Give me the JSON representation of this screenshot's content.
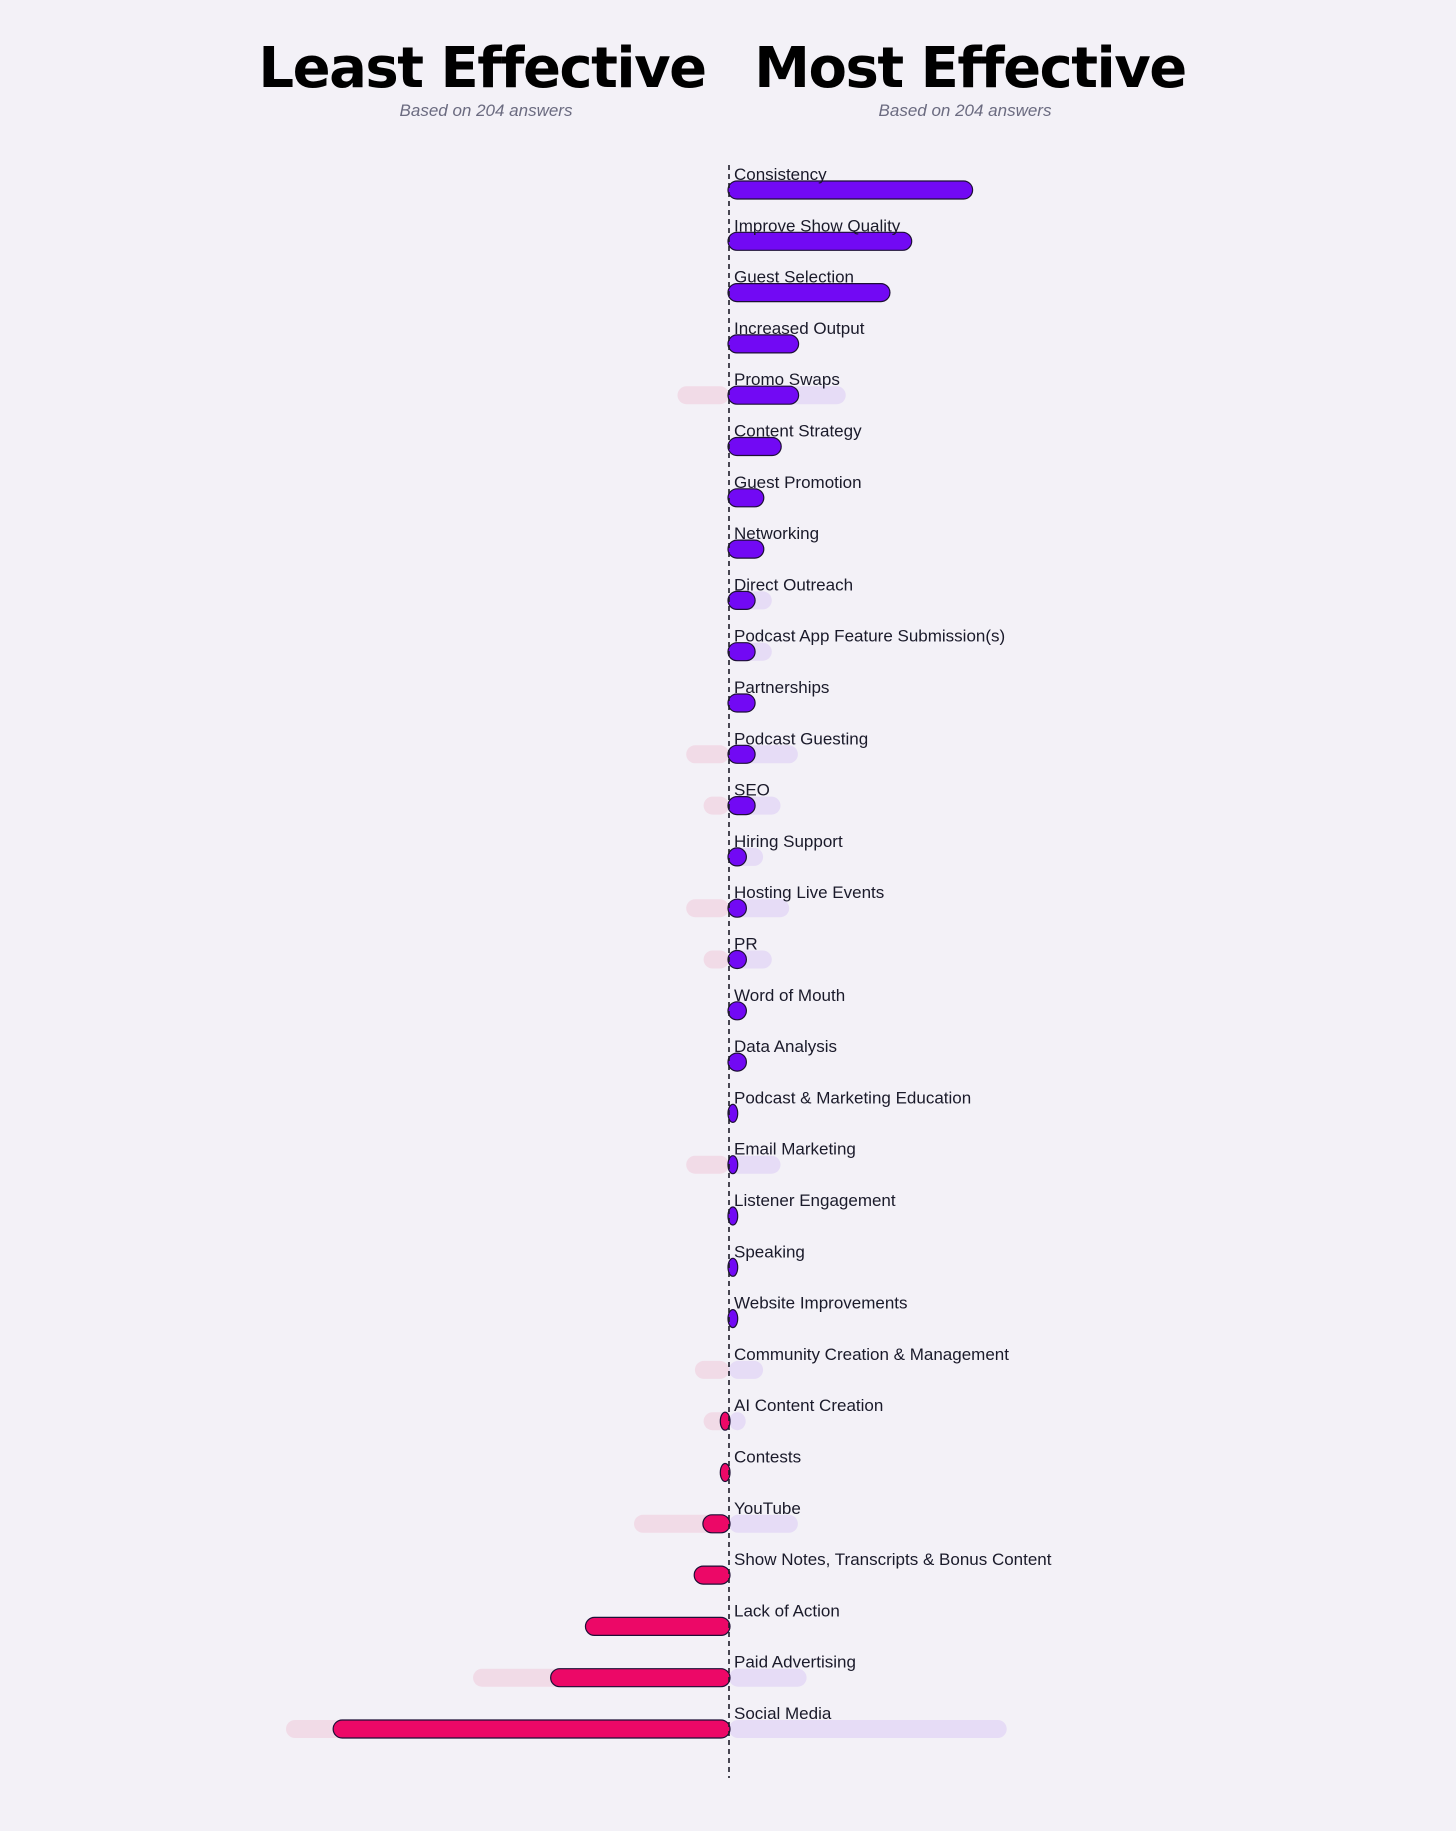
{
  "header": {
    "left": {
      "title": "Least Effective",
      "subtitle": "Based on 204 answers"
    },
    "right": {
      "title": "Most Effective",
      "subtitle": "Based on 204 answers"
    }
  },
  "colors": {
    "most": "#7209f4",
    "least": "#ec0867",
    "most_faint": "#e6dcf6",
    "least_faint": "#f1dbe7",
    "stroke": "#1d0f36",
    "background": "#f3f1f7"
  },
  "chart_data": {
    "type": "bar",
    "orientation": "horizontal-diverging",
    "xlabel": "",
    "ylabel": "",
    "grid": false,
    "legend": "none",
    "units": "relative length (Social Media, Least Effective = 100)",
    "categories": [
      "Consistency",
      "Improve Show Quality",
      "Guest Selection",
      "Increased Output",
      "Promo Swaps",
      "Content Strategy",
      "Guest Promotion",
      "Networking",
      "Direct Outreach",
      "Podcast App Feature Submission(s)",
      "Partnerships",
      "Podcast Guesting",
      "SEO",
      "Hiring Support",
      "Hosting Live Events",
      "PR",
      "Word of Mouth",
      "Data Analysis",
      "Podcast & Marketing Education",
      "Email Marketing",
      "Listener Engagement",
      "Speaking",
      "Website Improvements",
      "Community Creation & Management",
      "AI Content Creation",
      "Contests",
      "YouTube",
      "Show Notes, Transcripts & Bonus Content",
      "Lack of Action",
      "Paid Advertising",
      "Social Media"
    ],
    "series": [
      {
        "name": "Most Effective",
        "values": [
          56,
          42,
          37,
          16,
          16,
          12,
          8,
          8,
          6,
          6,
          6,
          6,
          6,
          4,
          4,
          4,
          4,
          4,
          2,
          2,
          2,
          2,
          2,
          0,
          0,
          0,
          0,
          0,
          0,
          0,
          0
        ]
      },
      {
        "name": "Least Effective",
        "values": [
          0,
          0,
          0,
          0,
          0,
          0,
          0,
          0,
          0,
          0,
          0,
          0,
          0,
          0,
          0,
          0,
          0,
          0,
          0,
          0,
          0,
          0,
          0,
          0,
          2,
          2,
          6,
          8,
          33,
          41,
          91
        ]
      }
    ],
    "background_series": [
      {
        "name": "Most Effective",
        "values": [
          0,
          0,
          0,
          0,
          25,
          0,
          0,
          0,
          8,
          8,
          0,
          14,
          10,
          6,
          12,
          8,
          0,
          0,
          0,
          10,
          0,
          0,
          0,
          6,
          2,
          0,
          14,
          0,
          0,
          16,
          62
        ]
      },
      {
        "name": "Least Effective",
        "values": [
          0,
          0,
          0,
          0,
          10,
          0,
          0,
          0,
          0,
          0,
          0,
          8,
          4,
          0,
          8,
          4,
          0,
          0,
          0,
          8,
          0,
          0,
          0,
          6,
          4,
          0,
          20,
          0,
          0,
          57,
          100
        ]
      }
    ]
  }
}
